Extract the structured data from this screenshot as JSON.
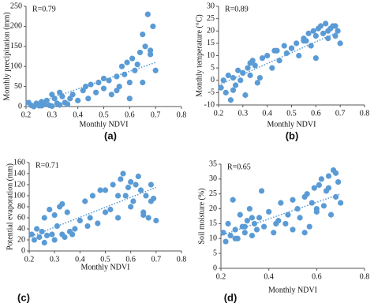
{
  "chart_data": [
    {
      "type": "scatter",
      "panel_label": "(a)",
      "xlabel": "Monthly NDVI",
      "ylabel": "Monthly precipitation (mm)",
      "annotation": "R=0.79",
      "color": "#5b9bd5",
      "xlim": [
        0.2,
        0.8
      ],
      "xticks": [
        0.2,
        0.3,
        0.4,
        0.5,
        0.6,
        0.7,
        0.8
      ],
      "ylim": [
        0,
        250
      ],
      "yticks": [
        0,
        50,
        100,
        150,
        200,
        250
      ],
      "x": [
        0.21,
        0.22,
        0.23,
        0.24,
        0.25,
        0.26,
        0.27,
        0.28,
        0.29,
        0.3,
        0.31,
        0.32,
        0.33,
        0.34,
        0.35,
        0.36,
        0.38,
        0.4,
        0.42,
        0.44,
        0.45,
        0.47,
        0.48,
        0.5,
        0.52,
        0.53,
        0.55,
        0.56,
        0.57,
        0.58,
        0.59,
        0.6,
        0.61,
        0.62,
        0.63,
        0.64,
        0.65,
        0.66,
        0.67,
        0.68,
        0.69,
        0.7,
        0.26,
        0.3,
        0.33,
        0.37,
        0.43,
        0.5,
        0.55,
        0.6,
        0.65,
        0.68
      ],
      "values": [
        10,
        3,
        0,
        8,
        2,
        12,
        5,
        15,
        3,
        1,
        20,
        8,
        4,
        25,
        10,
        6,
        30,
        15,
        40,
        20,
        55,
        35,
        60,
        45,
        65,
        30,
        75,
        50,
        100,
        80,
        110,
        60,
        120,
        90,
        105,
        135,
        180,
        150,
        230,
        130,
        200,
        90,
        2,
        30,
        35,
        20,
        50,
        70,
        40,
        20,
        60,
        140
      ],
      "trendline": {
        "x": [
          0.2,
          0.7
        ],
        "y": [
          0,
          110
        ]
      }
    },
    {
      "type": "scatter",
      "panel_label": "(b)",
      "xlabel": "Monthly NDVI",
      "ylabel": "Monthly temperature (°C)",
      "annotation": "R=0.89",
      "color": "#5b9bd5",
      "xlim": [
        0.2,
        0.8
      ],
      "xticks": [
        0.2,
        0.3,
        0.4,
        0.5,
        0.6,
        0.7,
        0.8
      ],
      "ylim": [
        -10,
        30
      ],
      "yticks": [
        -10,
        -5,
        0,
        5,
        10,
        15,
        20,
        25,
        30
      ],
      "x": [
        0.21,
        0.22,
        0.23,
        0.24,
        0.25,
        0.26,
        0.27,
        0.28,
        0.29,
        0.3,
        0.31,
        0.32,
        0.33,
        0.34,
        0.35,
        0.36,
        0.38,
        0.4,
        0.42,
        0.44,
        0.45,
        0.47,
        0.48,
        0.5,
        0.52,
        0.53,
        0.55,
        0.56,
        0.57,
        0.58,
        0.59,
        0.6,
        0.61,
        0.62,
        0.63,
        0.64,
        0.65,
        0.66,
        0.67,
        0.68,
        0.69,
        0.7,
        0.26,
        0.3,
        0.33,
        0.37,
        0.43,
        0.5,
        0.55,
        0.6,
        0.65,
        0.68
      ],
      "values": [
        -3,
        0,
        -5,
        2,
        -8,
        1,
        -2,
        4,
        0,
        3,
        -6,
        5,
        2,
        8,
        6,
        -1,
        9,
        10,
        5,
        12,
        8,
        14,
        11,
        13,
        15,
        10,
        17,
        16,
        19,
        14,
        20,
        18,
        21,
        22,
        19,
        23,
        20,
        21,
        22,
        18,
        20,
        15,
        -4,
        3,
        7,
        1,
        12,
        13,
        16,
        9,
        17,
        22
      ],
      "trendline": {
        "x": [
          0.2,
          0.7
        ],
        "y": [
          -2,
          20
        ]
      }
    },
    {
      "type": "scatter",
      "panel_label": "(c)",
      "xlabel": "Monthly NDVI",
      "ylabel": "Potential evaporation (mm)",
      "annotation": "R=0.71",
      "color": "#5b9bd5",
      "xlim": [
        0.2,
        0.8
      ],
      "xticks": [
        0.2,
        0.3,
        0.4,
        0.5,
        0.6,
        0.7,
        0.8
      ],
      "ylim": [
        0,
        160
      ],
      "yticks": [
        0,
        20,
        40,
        60,
        80,
        100,
        120,
        140,
        160
      ],
      "x": [
        0.21,
        0.22,
        0.23,
        0.24,
        0.25,
        0.26,
        0.27,
        0.28,
        0.29,
        0.3,
        0.31,
        0.32,
        0.33,
        0.34,
        0.35,
        0.36,
        0.38,
        0.4,
        0.42,
        0.44,
        0.45,
        0.47,
        0.48,
        0.5,
        0.52,
        0.53,
        0.55,
        0.56,
        0.57,
        0.58,
        0.59,
        0.6,
        0.61,
        0.62,
        0.63,
        0.64,
        0.65,
        0.66,
        0.67,
        0.68,
        0.69,
        0.7,
        0.26,
        0.3,
        0.33,
        0.37,
        0.43,
        0.5,
        0.55,
        0.6,
        0.65,
        0.68
      ],
      "values": [
        30,
        20,
        40,
        25,
        35,
        60,
        28,
        75,
        30,
        20,
        45,
        80,
        30,
        25,
        70,
        35,
        40,
        55,
        90,
        60,
        100,
        50,
        110,
        70,
        75,
        120,
        60,
        130,
        140,
        100,
        115,
        125,
        90,
        120,
        135,
        110,
        70,
        100,
        60,
        120,
        95,
        55,
        15,
        65,
        85,
        30,
        45,
        110,
        100,
        80,
        65,
        90
      ],
      "trendline": {
        "x": [
          0.2,
          0.7
        ],
        "y": [
          25,
          115
        ]
      }
    },
    {
      "type": "scatter",
      "panel_label": "(d)",
      "xlabel": "Monthly NDVI",
      "ylabel": "Soil moisture  (%)",
      "annotation": "R=0.65",
      "color": "#5b9bd5",
      "xlim": [
        0.2,
        0.8
      ],
      "xticks": [
        0.2,
        0.4,
        0.6,
        0.8
      ],
      "ylim": [
        0,
        35
      ],
      "yticks": [
        0,
        5,
        10,
        15,
        20,
        25,
        30,
        35
      ],
      "x": [
        0.21,
        0.22,
        0.23,
        0.24,
        0.25,
        0.26,
        0.27,
        0.28,
        0.29,
        0.3,
        0.31,
        0.32,
        0.33,
        0.34,
        0.35,
        0.36,
        0.38,
        0.4,
        0.42,
        0.44,
        0.45,
        0.47,
        0.48,
        0.5,
        0.52,
        0.53,
        0.55,
        0.56,
        0.57,
        0.58,
        0.59,
        0.6,
        0.61,
        0.62,
        0.63,
        0.64,
        0.65,
        0.66,
        0.67,
        0.68,
        0.69,
        0.7,
        0.26,
        0.3,
        0.33,
        0.37,
        0.43,
        0.5,
        0.55,
        0.6,
        0.65,
        0.68
      ],
      "values": [
        12,
        9,
        15,
        11,
        23,
        13,
        10,
        18,
        14,
        12,
        16,
        20,
        11,
        15,
        13,
        17,
        14,
        19,
        12,
        16,
        22,
        15,
        18,
        13,
        20,
        17,
        24,
        25,
        14,
        22,
        27,
        19,
        28,
        30,
        21,
        26,
        31,
        18,
        33,
        24,
        29,
        22,
        10,
        14,
        17,
        26,
        15,
        23,
        12,
        20,
        27,
        32
      ],
      "trendline": {
        "x": [
          0.2,
          0.7
        ],
        "y": [
          11,
          25
        ]
      }
    }
  ]
}
